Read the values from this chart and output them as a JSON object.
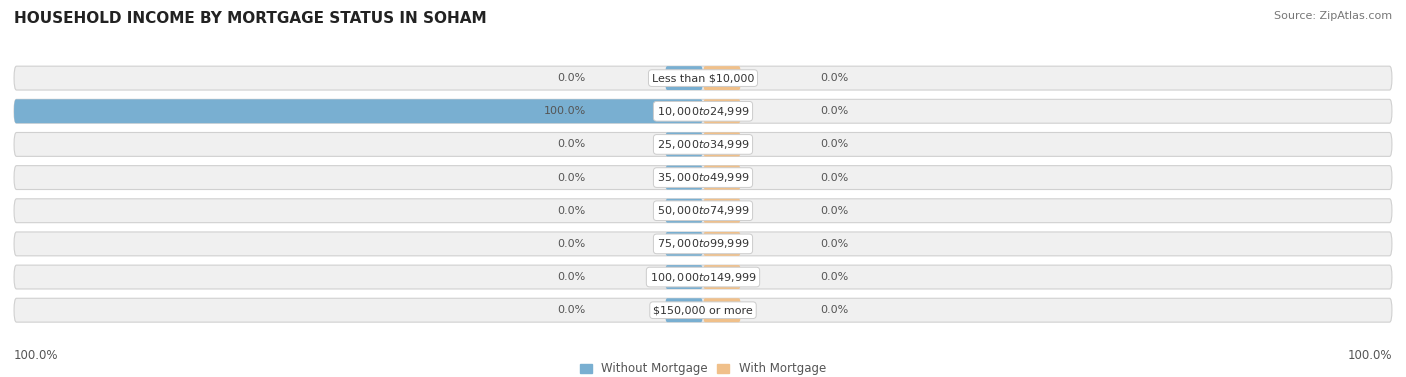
{
  "title": "HOUSEHOLD INCOME BY MORTGAGE STATUS IN SOHAM",
  "source": "Source: ZipAtlas.com",
  "categories": [
    "Less than $10,000",
    "$10,000 to $24,999",
    "$25,000 to $34,999",
    "$35,000 to $49,999",
    "$50,000 to $74,999",
    "$75,000 to $99,999",
    "$100,000 to $149,999",
    "$150,000 or more"
  ],
  "without_mortgage": [
    0.0,
    100.0,
    0.0,
    0.0,
    0.0,
    0.0,
    0.0,
    0.0
  ],
  "with_mortgage": [
    0.0,
    0.0,
    0.0,
    0.0,
    0.0,
    0.0,
    0.0,
    0.0
  ],
  "color_without": "#79afd1",
  "color_with": "#f0c08a",
  "bg_bar_odd": "#f0f0f0",
  "bg_bar_even": "#e8e8e8",
  "bg_fig": "#ffffff",
  "legend_label_without": "Without Mortgage",
  "legend_label_with": "With Mortgage",
  "axis_label_left": "100.0%",
  "axis_label_right": "100.0%",
  "title_fontsize": 11,
  "source_fontsize": 8,
  "label_fontsize": 8.5,
  "category_fontsize": 8,
  "value_fontsize": 8
}
